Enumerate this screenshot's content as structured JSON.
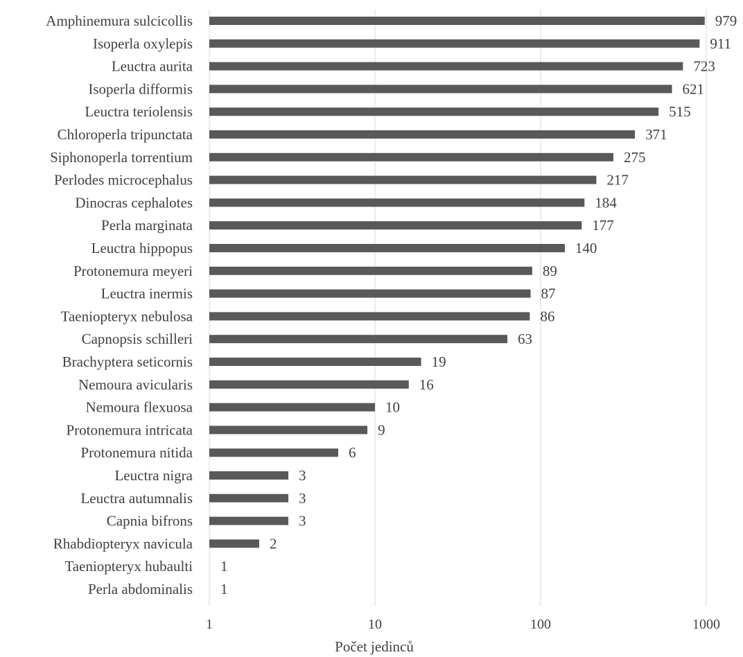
{
  "chart_data": {
    "type": "bar",
    "orientation": "horizontal",
    "xscale": "log",
    "xlim": [
      1,
      1000
    ],
    "xticks": [
      1,
      10,
      100,
      1000
    ],
    "xtick_labels": [
      "1",
      "10",
      "100",
      "1000"
    ],
    "xlabel": "Počet jedinců",
    "ylabel": "",
    "title": "",
    "grid": "vertical",
    "bar_color": "#595959",
    "gridline_color": "#d9d9d9",
    "text_color": "#404040",
    "categories": [
      "Amphinemura sulcicollis",
      "Isoperla oxylepis",
      "Leuctra aurita",
      "Isoperla difformis",
      "Leuctra teriolensis",
      "Chloroperla tripunctata",
      "Siphonoperla torrentium",
      "Perlodes microcephalus",
      "Dinocras cephalotes",
      "Perla marginata",
      "Leuctra hippopus",
      "Protonemura meyeri",
      "Leuctra inermis",
      "Taeniopteryx nebulosa",
      "Capnopsis schilleri",
      "Brachyptera seticornis",
      "Nemoura avicularis",
      "Nemoura flexuosa",
      "Protonemura intricata",
      "Protonemura nitida",
      "Leuctra nigra",
      "Leuctra autumnalis",
      "Capnia bifrons",
      "Rhabdiopteryx navicula",
      "Taeniopteryx hubaulti",
      "Perla abdominalis"
    ],
    "values": [
      979,
      911,
      723,
      621,
      515,
      371,
      275,
      217,
      184,
      177,
      140,
      89,
      87,
      86,
      63,
      19,
      16,
      10,
      9,
      6,
      3,
      3,
      3,
      2,
      1,
      1
    ],
    "value_labels": [
      "979",
      "911",
      "723",
      "621",
      "515",
      "371",
      "275",
      "217",
      "184",
      "177",
      "140",
      "89",
      "87",
      "86",
      "63",
      "19",
      "16",
      "10",
      "9",
      "6",
      "3",
      "3",
      "3",
      "2",
      "1",
      "1"
    ]
  }
}
